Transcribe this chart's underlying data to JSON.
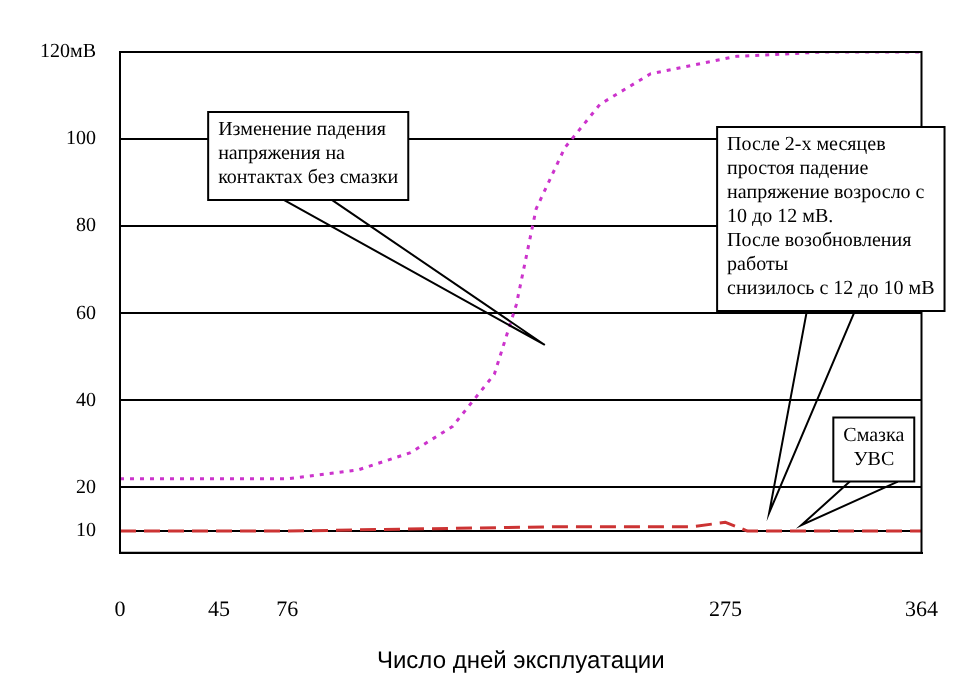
{
  "chart_data": {
    "type": "line",
    "xlabel": "Число дней эксплуатации",
    "xlim": [
      0,
      364
    ],
    "xticks": [
      0,
      45,
      76,
      275,
      364
    ],
    "ylim": [
      5,
      120
    ],
    "yticks": [
      10,
      20,
      40,
      60,
      80,
      100,
      {
        "value": 120,
        "label": "120мВ"
      }
    ],
    "grid": "y",
    "legend": false,
    "marker": "none",
    "series": [
      {
        "color": "#cc33cc",
        "line_style": "dotted",
        "x": [
          0,
          76,
          108,
          132,
          151,
          170,
          180,
          189,
          202,
          218,
          241,
          280,
          319,
          364
        ],
        "values": [
          22,
          22,
          24,
          28,
          34,
          46,
          62,
          84,
          98,
          108,
          115,
          119,
          120,
          120
        ]
      },
      {
        "color": "#cc3333",
        "line_style": "dashed",
        "x": [
          0,
          76,
          200,
          260,
          275,
          285,
          364
        ],
        "values": [
          10,
          10,
          11,
          11,
          12,
          10,
          10
        ]
      }
    ],
    "annotations": [
      "Изменение падения\nнапряжения на\nконтактах без смазки",
      "После 2-х месяцев\nпростоя падение\nнапряжение возросло с\n10 до 12 мВ.\nПосле возобновления\nработы\nснизилось с 12 до 10 мВ",
      "Смазка\nУВС"
    ]
  }
}
